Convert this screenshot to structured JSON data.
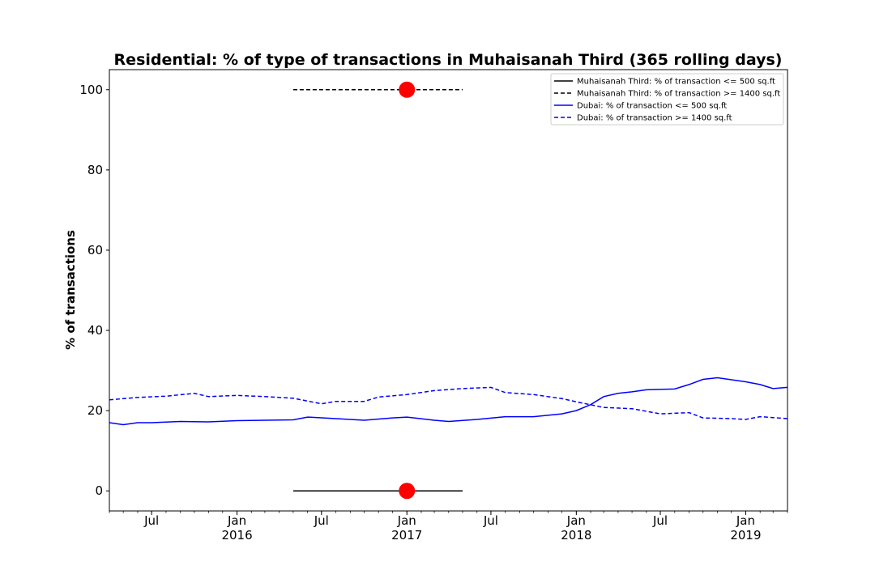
{
  "chart_data": {
    "type": "line",
    "title": "Residential: % of type of transactions in Muhaisanah Third (365 rolling days)",
    "xlabel": "",
    "ylabel": "% of transactions",
    "ylim": [
      -5,
      105
    ],
    "xlim": [
      "2015-04-01",
      "2019-04-01"
    ],
    "yticks": [
      0,
      20,
      40,
      60,
      80,
      100
    ],
    "xticks": [
      {
        "date": "2015-07-01",
        "label": "Jul",
        "year": ""
      },
      {
        "date": "2016-01-01",
        "label": "Jan",
        "year": "2016"
      },
      {
        "date": "2016-07-01",
        "label": "Jul",
        "year": ""
      },
      {
        "date": "2017-01-01",
        "label": "Jan",
        "year": "2017"
      },
      {
        "date": "2017-07-01",
        "label": "Jul",
        "year": ""
      },
      {
        "date": "2018-01-01",
        "label": "Jan",
        "year": "2018"
      },
      {
        "date": "2018-07-01",
        "label": "Jul",
        "year": ""
      },
      {
        "date": "2019-01-01",
        "label": "Jan",
        "year": "2019"
      }
    ],
    "grid": false,
    "legend_position": "top-right",
    "series": [
      {
        "name": "Muhaisanah Third: % of transaction <= 500 sq.ft",
        "color": "#000000",
        "style": "solid",
        "x": [
          "2016-05-01",
          "2017-05-01"
        ],
        "y": [
          0,
          0
        ]
      },
      {
        "name": "Muhaisanah Third: % of transaction >= 1400 sq.ft",
        "color": "#000000",
        "style": "dashed",
        "x": [
          "2016-05-01",
          "2017-05-01"
        ],
        "y": [
          100,
          100
        ]
      },
      {
        "name": "Dubai: % of transaction <= 500 sq.ft",
        "color": "#0000ff",
        "style": "solid",
        "x": [
          "2015-04-01",
          "2015-05-01",
          "2015-06-01",
          "2015-07-01",
          "2015-09-01",
          "2015-11-01",
          "2016-01-01",
          "2016-03-01",
          "2016-05-01",
          "2016-06-01",
          "2016-08-01",
          "2016-10-01",
          "2016-12-01",
          "2017-01-01",
          "2017-03-01",
          "2017-04-01",
          "2017-06-01",
          "2017-08-01",
          "2017-10-01",
          "2017-12-01",
          "2018-01-01",
          "2018-02-01",
          "2018-03-01",
          "2018-04-01",
          "2018-05-01",
          "2018-06-01",
          "2018-08-01",
          "2018-09-01",
          "2018-10-01",
          "2018-11-01",
          "2019-01-01",
          "2019-02-01",
          "2019-03-01",
          "2019-04-01"
        ],
        "y": [
          17,
          16.5,
          17,
          17,
          17.3,
          17.2,
          17.5,
          17.6,
          17.7,
          18.4,
          18,
          17.6,
          18.2,
          18.4,
          17.6,
          17.3,
          17.8,
          18.5,
          18.5,
          19.2,
          20,
          21.5,
          23.5,
          24.3,
          24.7,
          25.2,
          25.4,
          26.5,
          27.8,
          28.2,
          27.2,
          26.5,
          25.5,
          25.8
        ]
      },
      {
        "name": "Dubai: % of transaction >= 1400 sq.ft",
        "color": "#0000ff",
        "style": "dashed",
        "x": [
          "2015-04-01",
          "2015-06-01",
          "2015-08-01",
          "2015-10-01",
          "2015-11-01",
          "2016-01-01",
          "2016-03-01",
          "2016-05-01",
          "2016-07-01",
          "2016-08-01",
          "2016-10-01",
          "2016-11-01",
          "2017-01-01",
          "2017-03-01",
          "2017-05-01",
          "2017-07-01",
          "2017-08-01",
          "2017-10-01",
          "2017-12-01",
          "2018-01-01",
          "2018-03-01",
          "2018-05-01",
          "2018-07-01",
          "2018-09-01",
          "2018-10-01",
          "2018-12-01",
          "2019-01-01",
          "2019-02-01",
          "2019-04-01"
        ],
        "y": [
          22.7,
          23.3,
          23.6,
          24.3,
          23.5,
          23.8,
          23.5,
          23.1,
          21.7,
          22.3,
          22.3,
          23.4,
          24,
          25,
          25.5,
          25.8,
          24.5,
          24,
          23,
          22.2,
          20.8,
          20.5,
          19.2,
          19.5,
          18.2,
          18,
          17.8,
          18.5,
          18
        ]
      }
    ],
    "markers": [
      {
        "x": "2017-01-01",
        "y": 100,
        "color": "#ff0000"
      },
      {
        "x": "2017-01-01",
        "y": 0,
        "color": "#ff0000"
      }
    ]
  }
}
